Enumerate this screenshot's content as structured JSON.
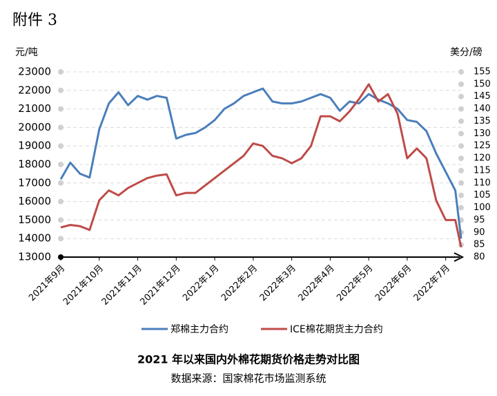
{
  "header": "附件 3",
  "chart_data": {
    "type": "line",
    "title": "2021 年以来国内外棉花期货价格走势对比图",
    "source": "数据来源：国家棉花市场监测系统",
    "y_label": "元/吨",
    "y2_label": "美分/磅",
    "x": [
      0,
      0.25,
      0.5,
      0.75,
      1,
      1.25,
      1.5,
      1.75,
      2,
      2.25,
      2.5,
      2.75,
      3,
      3.25,
      3.5,
      3.75,
      4,
      4.25,
      4.5,
      4.75,
      5,
      5.25,
      5.5,
      5.75,
      6,
      6.25,
      6.5,
      6.75,
      7,
      7.25,
      7.5,
      7.75,
      8,
      8.25,
      8.5,
      8.75,
      9,
      9.25,
      9.5,
      9.75,
      10,
      10.25,
      10.4
    ],
    "xlim": [
      0,
      10.4
    ],
    "xticks": [
      {
        "value": 0,
        "label": "2021年9月"
      },
      {
        "value": 1,
        "label": "2021年10月"
      },
      {
        "value": 2,
        "label": "2021年11月"
      },
      {
        "value": 3,
        "label": "2021年12月"
      },
      {
        "value": 4,
        "label": "2022年1月"
      },
      {
        "value": 5,
        "label": "2022年2月"
      },
      {
        "value": 6,
        "label": "2022年3月"
      },
      {
        "value": 7,
        "label": "2022年4月"
      },
      {
        "value": 8,
        "label": "2022年5月"
      },
      {
        "value": 9,
        "label": "2022年6月"
      },
      {
        "value": 10,
        "label": "2022年7月"
      }
    ],
    "ylim": [
      13000,
      23000
    ],
    "yticks": [
      13000,
      14000,
      15000,
      16000,
      17000,
      18000,
      19000,
      20000,
      21000,
      22000,
      23000
    ],
    "y2lim": [
      80,
      155
    ],
    "y2ticks": [
      80,
      85,
      90,
      95,
      100,
      105,
      110,
      115,
      120,
      125,
      130,
      135,
      140,
      145,
      150,
      155
    ],
    "grid": true,
    "series": [
      {
        "name": "郑棉主力合约",
        "color": "#4a7ebb",
        "values": [
          17200,
          18100,
          17500,
          17300,
          19900,
          21300,
          21900,
          21200,
          21700,
          21500,
          21700,
          21600,
          19400,
          19600,
          19700,
          20000,
          20400,
          21000,
          21300,
          21700,
          21900,
          22100,
          21400,
          21300,
          21300,
          21400,
          21600,
          21800,
          21600,
          20900,
          21400,
          21300,
          21800,
          21500,
          21300,
          21000,
          20400,
          20300,
          19800,
          18600,
          17600,
          16600,
          14000
        ]
      },
      {
        "name": "ICE棉花期货主力合约",
        "color": "#be4b48",
        "axis": "y2",
        "values": [
          92,
          93,
          92.5,
          91,
          103,
          107,
          105,
          108,
          110,
          112,
          113,
          113.5,
          105,
          106,
          106,
          109,
          112,
          115,
          118,
          121,
          126,
          125,
          121,
          120,
          118,
          120,
          125,
          137,
          137,
          135,
          139,
          144,
          150,
          143,
          146,
          138,
          120,
          124,
          120,
          103,
          95,
          95,
          84
        ]
      }
    ]
  }
}
